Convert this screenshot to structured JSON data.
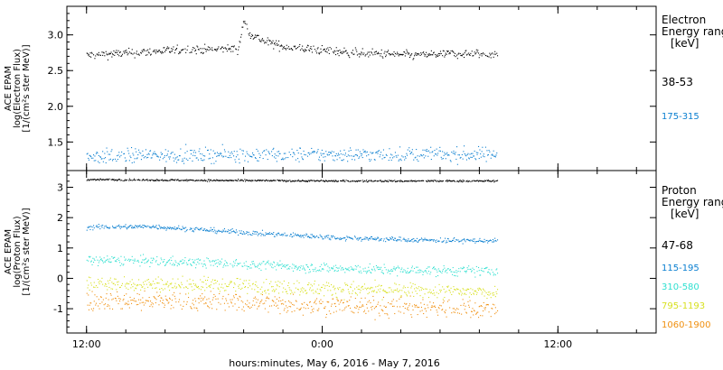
{
  "chart_data": [
    {
      "type": "scatter",
      "panel": "electron",
      "ylabel": [
        "ACE EPAM",
        "log(Electron Flux)",
        "[1/(cm²s ster MeV)]"
      ],
      "ylim": [
        1.1,
        3.4
      ],
      "yticks": [
        1.5,
        2.0,
        2.5,
        3.0
      ],
      "ytick_labels": [
        "1.5",
        "2.0",
        "2.5",
        "3.0"
      ],
      "legend_title": [
        "Electron",
        "Energy ranges",
        "[keV]"
      ],
      "series": [
        {
          "name": "38-53",
          "color": "#000000",
          "profile": [
            [
              0,
              2.72
            ],
            [
              8,
              2.76
            ],
            [
              15,
              2.8
            ],
            [
              20,
              2.8
            ],
            [
              23.2,
              2.82
            ],
            [
              23.9,
              3.2
            ],
            [
              25,
              3.02
            ],
            [
              27,
              2.92
            ],
            [
              30,
              2.84
            ],
            [
              35,
              2.8
            ],
            [
              40,
              2.76
            ],
            [
              45,
              2.74
            ],
            [
              50,
              2.72
            ],
            [
              55,
              2.74
            ],
            [
              60,
              2.74
            ],
            [
              62.8,
              2.74
            ]
          ],
          "noise": 0.03
        },
        {
          "name": "175-315",
          "color": "#0a7fd0",
          "profile": [
            [
              0,
              1.3
            ],
            [
              10,
              1.32
            ],
            [
              20,
              1.33
            ],
            [
              30,
              1.33
            ],
            [
              40,
              1.33
            ],
            [
              50,
              1.33
            ],
            [
              62.8,
              1.33
            ]
          ],
          "noise": 0.05
        }
      ]
    },
    {
      "type": "scatter",
      "panel": "proton",
      "ylabel": [
        "ACE EPAM",
        "log(Proton Flux)",
        "[1/(cm²s ster MeV)]"
      ],
      "ylim": [
        -1.8,
        3.55
      ],
      "yticks": [
        -1,
        0,
        1,
        2,
        3
      ],
      "ytick_labels": [
        "-1",
        "0",
        "1",
        "2",
        "3"
      ],
      "legend_title": [
        "Proton",
        "Energy ranges",
        "[keV]"
      ],
      "series": [
        {
          "name": "47-68",
          "color": "#000000",
          "profile": [
            [
              0,
              3.27
            ],
            [
              20,
              3.24
            ],
            [
              40,
              3.22
            ],
            [
              62.8,
              3.22
            ]
          ],
          "noise": 0.015
        },
        {
          "name": "115-195",
          "color": "#0a7fd0",
          "profile": [
            [
              0,
              1.7
            ],
            [
              10,
              1.72
            ],
            [
              20,
              1.58
            ],
            [
              30,
              1.45
            ],
            [
              40,
              1.34
            ],
            [
              50,
              1.28
            ],
            [
              62.8,
              1.25
            ]
          ],
          "noise": 0.04
        },
        {
          "name": "310-580",
          "color": "#30e0d0",
          "profile": [
            [
              0,
              0.62
            ],
            [
              10,
              0.58
            ],
            [
              20,
              0.52
            ],
            [
              30,
              0.42
            ],
            [
              40,
              0.32
            ],
            [
              50,
              0.27
            ],
            [
              62.8,
              0.25
            ]
          ],
          "noise": 0.08
        },
        {
          "name": "795-1193",
          "color": "#d8e020",
          "profile": [
            [
              0,
              -0.15
            ],
            [
              20,
              -0.2
            ],
            [
              40,
              -0.35
            ],
            [
              62.8,
              -0.45
            ]
          ],
          "noise": 0.12
        },
        {
          "name": "1060-1900",
          "color": "#f09010",
          "profile": [
            [
              0,
              -0.7
            ],
            [
              20,
              -0.75
            ],
            [
              40,
              -0.9
            ],
            [
              62.8,
              -1.0
            ]
          ],
          "noise": 0.16
        }
      ]
    }
  ],
  "x_axis": {
    "range_hours": [
      -3,
      87
    ],
    "data_end_hours": 62.8,
    "ticks": [
      {
        "h": 0,
        "label": "12:00"
      },
      {
        "h": 36,
        "label": "0:00"
      },
      {
        "h": 72,
        "label": "12:00"
      }
    ],
    "minor_step_hours": 6,
    "xlabel": "hours:minutes, May  6, 2016 - May  7, 2016"
  }
}
